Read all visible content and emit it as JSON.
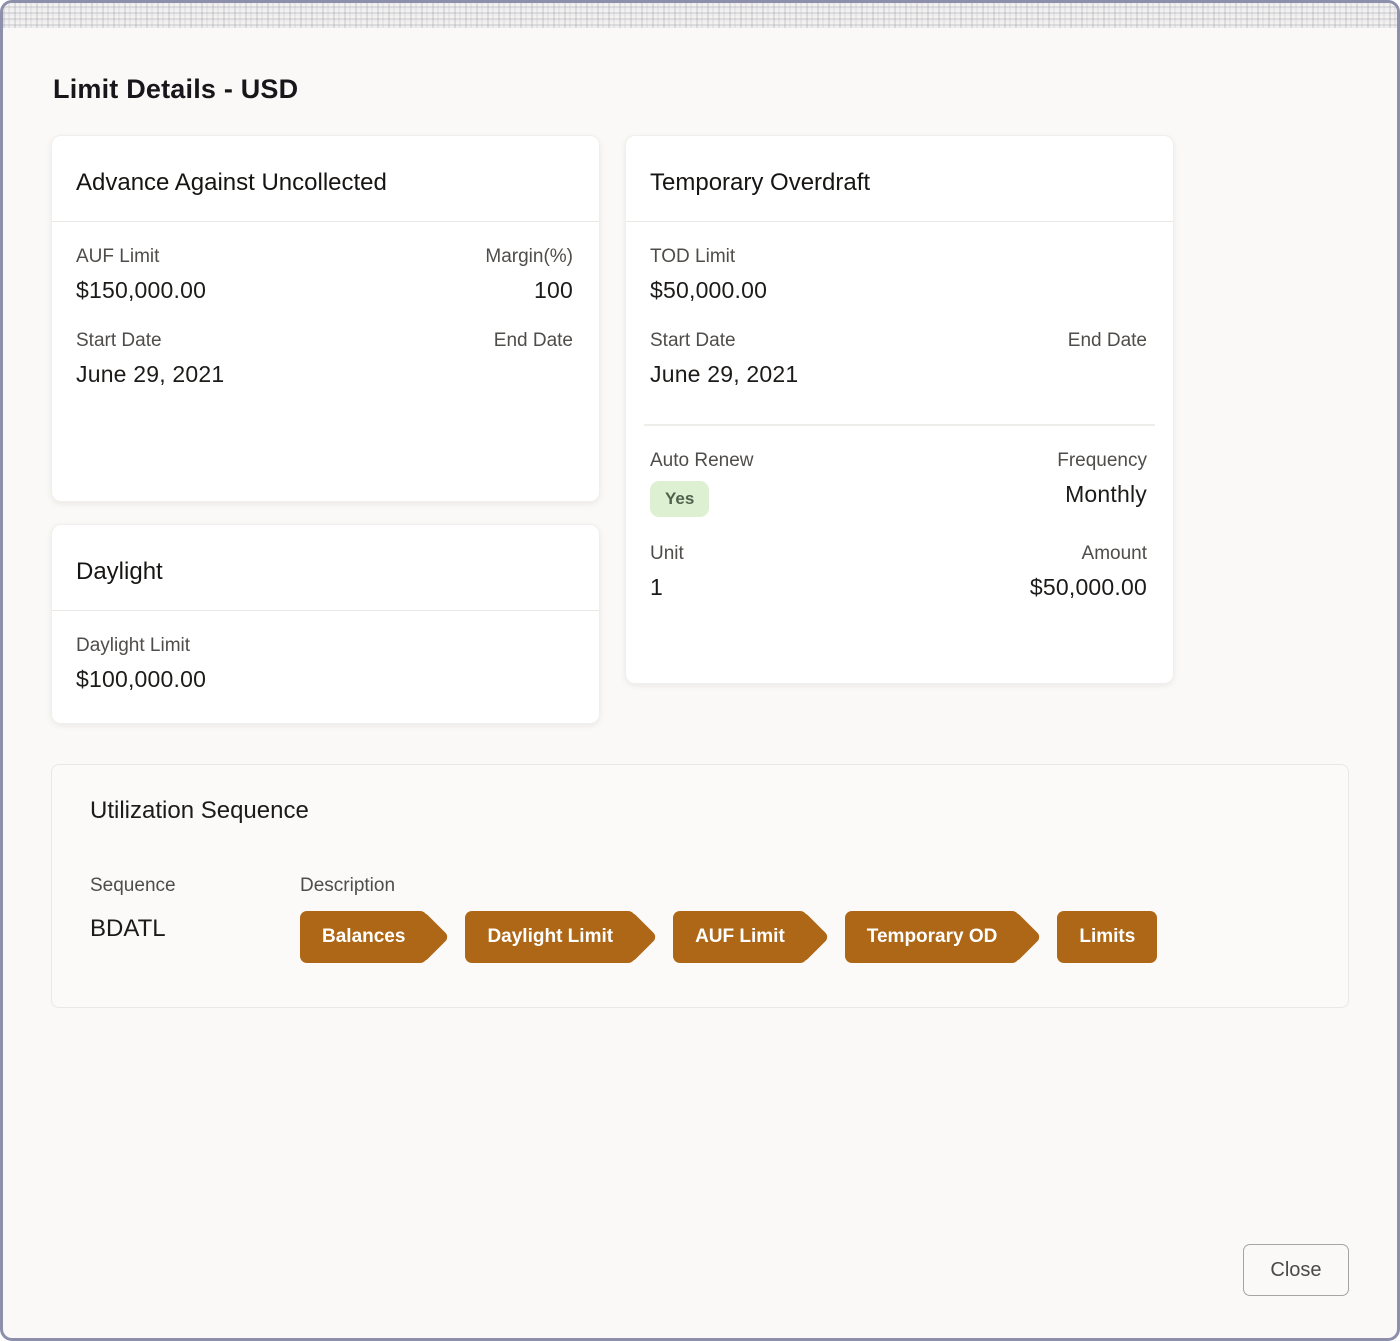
{
  "page": {
    "title": "Limit Details - USD"
  },
  "advance_card": {
    "title": "Advance Against Uncollected",
    "auf_limit_label": "AUF Limit",
    "auf_limit_value": "$150,000.00",
    "margin_label": "Margin(%)",
    "margin_value": "100",
    "start_date_label": "Start Date",
    "start_date_value": "June 29, 2021",
    "end_date_label": "End Date",
    "end_date_value": ""
  },
  "daylight_card": {
    "title": "Daylight",
    "limit_label": "Daylight Limit",
    "limit_value": "$100,000.00"
  },
  "tod_card": {
    "title": "Temporary Overdraft",
    "tod_limit_label": "TOD Limit",
    "tod_limit_value": "$50,000.00",
    "start_date_label": "Start Date",
    "start_date_value": "June 29, 2021",
    "end_date_label": "End Date",
    "end_date_value": "",
    "auto_renew_label": "Auto Renew",
    "auto_renew_value": "Yes",
    "frequency_label": "Frequency",
    "frequency_value": "Monthly",
    "unit_label": "Unit",
    "unit_value": "1",
    "amount_label": "Amount",
    "amount_value": "$50,000.00"
  },
  "utilization": {
    "title": "Utilization Sequence",
    "sequence_label": "Sequence",
    "sequence_value": "BDATL",
    "description_label": "Description",
    "steps": [
      {
        "label": "Balances"
      },
      {
        "label": "Daylight Limit"
      },
      {
        "label": "AUF Limit"
      },
      {
        "label": "Temporary OD"
      },
      {
        "label": "Limits"
      }
    ]
  },
  "footer": {
    "close_label": "Close"
  },
  "colors": {
    "accent_step_brown": "#ad6716",
    "yes_badge_bg": "#def0d2",
    "yes_badge_text": "#50614e",
    "frame_border": "#8d8fab",
    "page_bg": "#faf9f7",
    "card_bg": "#ffffff"
  }
}
